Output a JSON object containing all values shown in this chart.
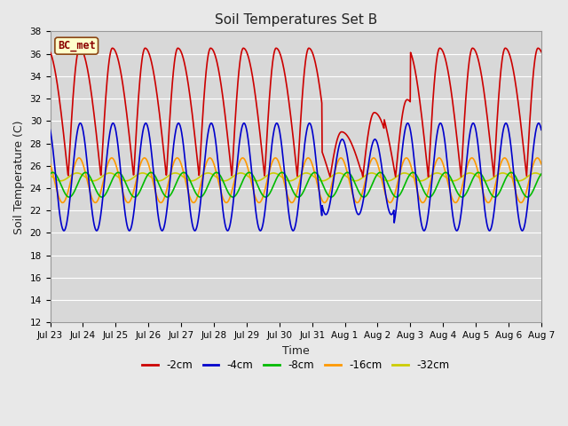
{
  "title": "Soil Temperatures Set B",
  "xlabel": "Time",
  "ylabel": "Soil Temperature (C)",
  "ylim": [
    12,
    38
  ],
  "yticks": [
    12,
    14,
    16,
    18,
    20,
    22,
    24,
    26,
    28,
    30,
    32,
    34,
    36,
    38
  ],
  "colors": {
    "-2cm": "#cc0000",
    "-4cm": "#0000cc",
    "-8cm": "#00bb00",
    "-16cm": "#ff9900",
    "-32cm": "#cccc00"
  },
  "legend_label": "BC_met",
  "legend_facecolor": "#ffffcc",
  "legend_edgecolor": "#8b4513",
  "plot_bg_color": "#d8d8d8",
  "fig_bg_color": "#e8e8e8",
  "grid_color": "#ffffff",
  "depths": [
    "-2cm",
    "-4cm",
    "-8cm",
    "-16cm",
    "-32cm"
  ],
  "title_fontsize": 11,
  "axis_label_fontsize": 9,
  "tick_fontsize": 7.5,
  "legend_fontsize": 8.5,
  "linewidth": 1.2
}
